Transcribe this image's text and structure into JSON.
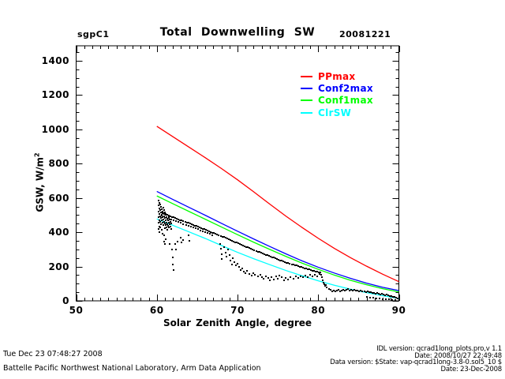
{
  "header": {
    "site": "sgpC1",
    "title": "Total Downwelling SW",
    "date": "20081221"
  },
  "legend": {
    "entries": [
      {
        "label": "PPmax",
        "color": "#ff0000"
      },
      {
        "label": "Conf2max",
        "color": "#0000ff"
      },
      {
        "label": "Conf1max",
        "color": "#00ff00"
      },
      {
        "label": "ClrSW",
        "color": "#00ffff"
      }
    ]
  },
  "footer_left": {
    "timestamp": "Tue Dec 23 07:48:27 2008",
    "organization": "Battelle Pacific Northwest National Laboratory, Arm Data Application"
  },
  "footer_right": {
    "idl_version": "IDL version: qcrad1long_plots.pro,v 1.1",
    "idl_date": "Date: 2008/10/27 22:49:48",
    "data_version": "Data version: $State: vap-qcrad1long-3.8-0.sol5_10 $",
    "data_date": "Date: 23-Dec-2008"
  },
  "colors": {
    "background": "#ffffff",
    "axis": "#000000",
    "scatter": "#000000"
  },
  "chart_data": {
    "type": "scatter",
    "title": "Total Downwelling SW",
    "xlabel": "Solar Zenith Angle, degree",
    "ylabel": "GSW, W/m²",
    "ylabel_main": "GSW, W/m",
    "ylabel_sup": "2",
    "xlim": [
      50,
      90
    ],
    "ylim": [
      0,
      1490
    ],
    "x_major_ticks": [
      50,
      60,
      70,
      80,
      90
    ],
    "x_minor_step": 1,
    "y_major_ticks": [
      0,
      200,
      400,
      600,
      800,
      1000,
      1200,
      1400
    ],
    "y_minor_step": 50,
    "grid": false,
    "legend_position": "upper right inside",
    "series_x": [
      60,
      62,
      64,
      66,
      68,
      70,
      72,
      74,
      76,
      78,
      80,
      82,
      84,
      86,
      88,
      90
    ],
    "series": [
      {
        "name": "PPmax",
        "color": "#ff0000",
        "y": [
          1018,
          957,
          896,
          835,
          772,
          706,
          636,
          564,
          494,
          428,
          365,
          306,
          252,
          202,
          155,
          112
        ]
      },
      {
        "name": "Conf2max",
        "color": "#0000ff",
        "y": [
          638,
          591,
          545,
          499,
          452,
          406,
          361,
          317,
          274,
          233,
          196,
          162,
          131,
          103,
          79,
          60
        ]
      },
      {
        "name": "Conf1max",
        "color": "#00ff00",
        "y": [
          612,
          566,
          521,
          476,
          431,
          386,
          342,
          300,
          259,
          220,
          184,
          150,
          120,
          94,
          71,
          52
        ]
      },
      {
        "name": "ClrSW",
        "color": "#00ffff",
        "y": [
          478,
          440,
          402,
          364,
          323,
          283,
          246,
          211,
          177,
          146,
          117,
          91,
          68,
          48,
          30,
          14
        ]
      }
    ],
    "scatter": {
      "name": "GSW observations",
      "color": "#000000",
      "bands": [
        {
          "x_start": 60.5,
          "x_step": 0.2,
          "values": [
            515,
            512,
            508,
            505,
            501,
            497,
            494,
            490,
            486,
            483,
            479,
            476,
            472,
            468,
            465,
            461,
            457,
            454,
            450,
            446,
            443,
            439,
            436,
            432,
            428,
            425,
            421,
            417,
            414,
            410,
            406,
            402,
            398,
            395,
            391,
            387,
            383,
            379,
            375,
            371,
            367,
            363,
            359,
            355,
            351,
            347,
            343,
            339,
            335,
            331,
            327,
            323,
            319,
            315,
            311,
            307,
            303,
            299,
            295,
            291,
            287,
            284,
            280,
            276,
            272,
            269,
            265,
            261,
            258,
            254,
            251,
            247,
            244,
            240,
            237,
            233,
            230,
            227,
            223,
            220,
            217,
            214,
            211,
            208,
            205,
            202,
            199,
            196,
            193,
            190,
            188,
            185,
            182,
            180,
            177,
            175,
            172,
            170,
            167,
            165
          ]
        },
        {
          "x_start": 60.6,
          "x_step": 0.3,
          "values": [
            498,
            492,
            487,
            482,
            476,
            471,
            465,
            460,
            455,
            449,
            444,
            438,
            433,
            428,
            422,
            417,
            411,
            406,
            401,
            395,
            390,
            384
          ]
        }
      ],
      "points": [
        [
          60.2,
          585
        ],
        [
          60.2,
          555
        ],
        [
          60.2,
          520
        ],
        [
          60.2,
          488
        ],
        [
          60.2,
          455
        ],
        [
          60.2,
          420
        ],
        [
          60.3,
          570
        ],
        [
          60.3,
          540
        ],
        [
          60.3,
          505
        ],
        [
          60.3,
          470
        ],
        [
          60.3,
          435
        ],
        [
          60.3,
          400
        ],
        [
          60.4,
          560
        ],
        [
          60.4,
          528
        ],
        [
          60.4,
          495
        ],
        [
          60.4,
          460
        ],
        [
          60.4,
          428
        ],
        [
          60.5,
          548
        ],
        [
          60.5,
          515
        ],
        [
          60.5,
          482
        ],
        [
          60.5,
          448
        ],
        [
          60.6,
          535
        ],
        [
          60.6,
          500
        ],
        [
          60.6,
          468
        ],
        [
          60.6,
          415
        ],
        [
          60.7,
          522
        ],
        [
          60.7,
          490
        ],
        [
          60.7,
          455
        ],
        [
          60.7,
          390
        ],
        [
          60.8,
          545
        ],
        [
          60.8,
          510
        ],
        [
          60.8,
          475
        ],
        [
          60.8,
          440
        ],
        [
          60.9,
          530
        ],
        [
          60.9,
          495
        ],
        [
          60.9,
          462
        ],
        [
          60.9,
          381
        ],
        [
          60.9,
          345
        ],
        [
          61.0,
          515
        ],
        [
          61.0,
          482
        ],
        [
          61.0,
          450
        ],
        [
          61.0,
          425
        ],
        [
          61.0,
          330
        ],
        [
          61.1,
          500
        ],
        [
          61.1,
          470
        ],
        [
          61.1,
          440
        ],
        [
          61.1,
          360
        ],
        [
          61.2,
          488
        ],
        [
          61.2,
          458
        ],
        [
          61.2,
          430
        ],
        [
          61.3,
          478
        ],
        [
          61.3,
          448
        ],
        [
          61.3,
          415
        ],
        [
          61.4,
          468
        ],
        [
          61.4,
          438
        ],
        [
          61.5,
          490
        ],
        [
          61.5,
          455
        ],
        [
          61.5,
          428
        ],
        [
          61.6,
          475
        ],
        [
          61.6,
          445
        ],
        [
          61.6,
          330
        ],
        [
          61.7,
          462
        ],
        [
          61.7,
          432
        ],
        [
          61.8,
          450
        ],
        [
          61.8,
          420
        ],
        [
          61.9,
          300
        ],
        [
          61.95,
          255
        ],
        [
          62.0,
          210
        ],
        [
          62.05,
          180
        ],
        [
          62.3,
          330
        ],
        [
          62.35,
          300
        ],
        [
          62.6,
          345
        ],
        [
          63.0,
          370
        ],
        [
          63.05,
          340
        ],
        [
          63.3,
          355
        ],
        [
          63.9,
          380
        ],
        [
          64.0,
          350
        ],
        [
          67.8,
          330
        ],
        [
          67.9,
          302
        ],
        [
          68.0,
          272
        ],
        [
          68.05,
          245
        ],
        [
          68.3,
          312
        ],
        [
          68.5,
          282
        ],
        [
          68.6,
          256
        ],
        [
          68.8,
          300
        ],
        [
          69.0,
          266
        ],
        [
          69.1,
          236
        ],
        [
          69.3,
          210
        ],
        [
          69.4,
          250
        ],
        [
          69.6,
          226
        ],
        [
          69.8,
          206
        ],
        [
          70.0,
          216
        ],
        [
          70.2,
          196
        ],
        [
          70.4,
          181
        ],
        [
          70.6,
          191
        ],
        [
          70.8,
          171
        ],
        [
          71.0,
          161
        ],
        [
          71.2,
          176
        ],
        [
          71.5,
          158
        ],
        [
          71.8,
          149
        ],
        [
          72.0,
          163
        ],
        [
          72.2,
          151
        ],
        [
          72.5,
          141
        ],
        [
          72.8,
          153
        ],
        [
          73.0,
          139
        ],
        [
          73.2,
          129
        ],
        [
          73.5,
          143
        ],
        [
          73.8,
          133
        ],
        [
          74.0,
          121
        ],
        [
          74.2,
          136
        ],
        [
          74.5,
          126
        ],
        [
          74.8,
          141
        ],
        [
          75.0,
          131
        ],
        [
          75.2,
          146
        ],
        [
          75.5,
          136
        ],
        [
          75.8,
          120
        ],
        [
          76.0,
          132
        ],
        [
          76.3,
          124
        ],
        [
          76.6,
          137
        ],
        [
          76.9,
          128
        ],
        [
          77.2,
          141
        ],
        [
          77.5,
          133
        ],
        [
          77.8,
          144
        ],
        [
          78.1,
          136
        ],
        [
          78.4,
          147
        ],
        [
          78.7,
          139
        ],
        [
          79.0,
          150
        ],
        [
          79.3,
          142
        ],
        [
          79.6,
          152
        ],
        [
          79.9,
          145
        ],
        [
          80.2,
          155
        ],
        [
          80.4,
          150
        ],
        [
          80.5,
          136
        ],
        [
          80.6,
          121
        ],
        [
          80.7,
          108
        ],
        [
          80.8,
          96
        ],
        [
          80.9,
          86
        ],
        [
          81.0,
          93
        ],
        [
          81.1,
          79
        ],
        [
          81.3,
          71
        ],
        [
          81.5,
          63
        ],
        [
          81.7,
          56
        ],
        [
          81.9,
          61
        ],
        [
          82.1,
          53
        ],
        [
          82.3,
          59
        ],
        [
          82.5,
          63
        ],
        [
          82.7,
          57
        ],
        [
          82.9,
          61
        ],
        [
          83.1,
          65
        ],
        [
          83.3,
          59
        ],
        [
          83.5,
          63
        ],
        [
          83.7,
          67
        ],
        [
          83.9,
          61
        ],
        [
          84.1,
          65
        ],
        [
          84.3,
          59
        ],
        [
          84.5,
          63
        ],
        [
          84.7,
          58
        ],
        [
          84.9,
          61
        ],
        [
          85.1,
          56
        ],
        [
          85.3,
          59
        ],
        [
          85.5,
          54
        ],
        [
          85.7,
          57
        ],
        [
          85.9,
          51
        ],
        [
          86.1,
          54
        ],
        [
          86.3,
          49
        ],
        [
          86.5,
          51
        ],
        [
          86.7,
          46
        ],
        [
          86.9,
          48
        ],
        [
          87.1,
          43
        ],
        [
          87.3,
          45
        ],
        [
          87.5,
          41
        ],
        [
          87.7,
          38
        ],
        [
          87.9,
          40
        ],
        [
          88.1,
          36
        ],
        [
          88.3,
          33
        ],
        [
          88.5,
          35
        ],
        [
          88.7,
          31
        ],
        [
          88.9,
          29
        ],
        [
          89.1,
          26
        ],
        [
          89.3,
          23
        ],
        [
          89.5,
          21
        ],
        [
          89.7,
          18
        ],
        [
          89.9,
          16
        ],
        [
          86.0,
          24
        ],
        [
          86.4,
          20
        ],
        [
          86.8,
          17
        ],
        [
          87.2,
          14
        ],
        [
          87.6,
          12
        ],
        [
          88.0,
          10
        ],
        [
          88.4,
          8
        ],
        [
          88.8,
          7
        ],
        [
          89.2,
          6
        ],
        [
          89.6,
          5
        ],
        [
          90.0,
          4
        ]
      ]
    }
  }
}
